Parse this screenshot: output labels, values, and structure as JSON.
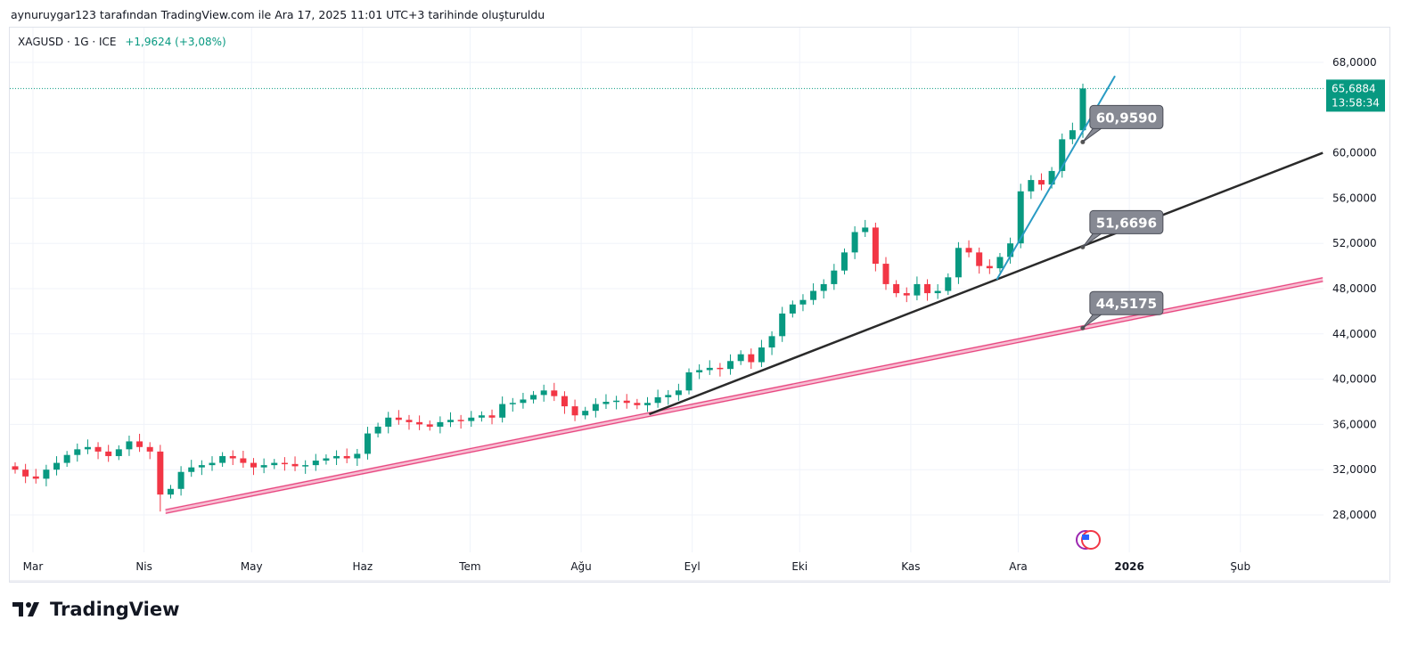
{
  "caption": "aynuruygar123 tarafından TradingView.com ile Ara 17, 2025 11:01 UTC+3 tarihinde oluşturuldu",
  "legend": {
    "symbol": "XAGUSD · 1G · ICE",
    "change": "+1,9624 (+3,08%)"
  },
  "price_axis": [
    "68,0000",
    "60,0000",
    "56,0000",
    "52,0000",
    "48,0000",
    "44,0000",
    "40,0000",
    "36,0000",
    "32,0000",
    "28,0000"
  ],
  "price_axis_values": [
    68,
    60,
    56,
    52,
    48,
    44,
    40,
    36,
    32,
    28
  ],
  "last_price": {
    "value": "65,6884",
    "countdown": "13:58:34",
    "price": 65.6884
  },
  "time_axis": [
    {
      "label": "Mar",
      "date": "2025-03-01"
    },
    {
      "label": "Nis",
      "date": "2025-04-01"
    },
    {
      "label": "May",
      "date": "2025-05-01"
    },
    {
      "label": "Haz",
      "date": "2025-06-01"
    },
    {
      "label": "Tem",
      "date": "2025-07-01"
    },
    {
      "label": "Ağu",
      "date": "2025-08-01"
    },
    {
      "label": "Eyl",
      "date": "2025-09-01"
    },
    {
      "label": "Eki",
      "date": "2025-10-01"
    },
    {
      "label": "Kas",
      "date": "2025-11-01"
    },
    {
      "label": "Ara",
      "date": "2025-12-01"
    },
    {
      "label": "2026",
      "date": "2026-01-01",
      "bold": true
    },
    {
      "label": "Şub",
      "date": "2026-02-01"
    }
  ],
  "colors": {
    "up": "#089981",
    "down": "#f23645",
    "pink_line": "#e8457f",
    "black_line": "#2a2a2a",
    "blue_line": "#2a9bc4",
    "label_bg": "#868993"
  },
  "chart_data": {
    "type": "candlestick",
    "start_date": "2025-02-24",
    "end_date": "2025-12-17",
    "first_open": 32.3,
    "closes": [
      32.0,
      31.4,
      31.2,
      32.0,
      32.6,
      33.3,
      33.8,
      34.0,
      33.6,
      33.2,
      33.8,
      34.5,
      34.0,
      33.6,
      29.8,
      30.3,
      31.8,
      32.2,
      32.4,
      32.6,
      33.2,
      33.0,
      32.6,
      32.2,
      32.4,
      32.6,
      32.5,
      32.3,
      32.4,
      32.8,
      33.0,
      33.2,
      33.0,
      33.4,
      35.2,
      35.8,
      36.6,
      36.4,
      36.2,
      36.0,
      35.8,
      36.2,
      36.4,
      36.3,
      36.6,
      36.8,
      36.6,
      37.8,
      37.9,
      38.2,
      38.6,
      39.0,
      38.5,
      37.6,
      36.8,
      37.2,
      37.8,
      38.0,
      38.1,
      37.9,
      37.7,
      37.9,
      38.4,
      38.6,
      39.0,
      40.6,
      40.8,
      41.0,
      40.9,
      41.6,
      42.2,
      41.5,
      42.8,
      43.8,
      45.8,
      46.6,
      47.0,
      47.8,
      48.4,
      49.6,
      51.2,
      53.0,
      53.4,
      50.2,
      48.4,
      47.6,
      47.4,
      48.4,
      47.6,
      47.8,
      49.0,
      51.6,
      51.2,
      50.0,
      49.8,
      50.8,
      52.0,
      56.6,
      57.6,
      57.2,
      58.4,
      61.2,
      62.0,
      65.6884
    ],
    "ylim": [
      24.5,
      71
    ],
    "trendlines": [
      {
        "name": "pink",
        "from": {
          "date": "2025-04-07",
          "price": 28.3
        },
        "to": {
          "date": "2026-02-24",
          "price": 48.8
        },
        "label": "44,5175",
        "label_date": "2025-12-19",
        "label_price": 44.5175
      },
      {
        "name": "black",
        "from": {
          "date": "2025-08-20",
          "price": 36.9
        },
        "to": {
          "date": "2026-02-24",
          "price": 60.0
        },
        "label": "51,6696",
        "label_date": "2025-12-19",
        "label_price": 51.6696
      },
      {
        "name": "blue",
        "from": {
          "date": "2025-11-25",
          "price": 48.8
        },
        "to": {
          "date": "2025-12-28",
          "price": 66.8
        },
        "label": "60,9590",
        "label_date": "2025-12-19",
        "label_price": 60.959
      }
    ]
  },
  "brand": "TradingView"
}
